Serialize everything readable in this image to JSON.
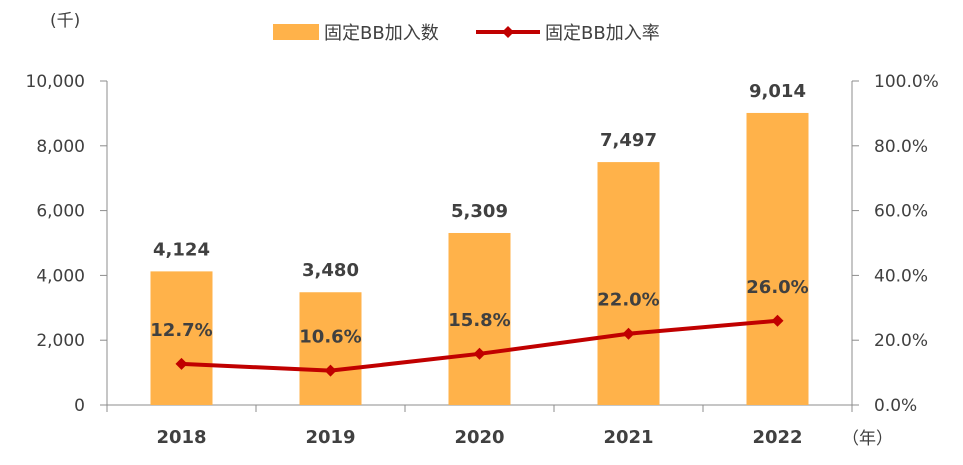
{
  "chart_data": {
    "type": "bar",
    "categories": [
      "2018",
      "2019",
      "2020",
      "2021",
      "2022"
    ],
    "series": [
      {
        "name": "固定BB加入数",
        "kind": "bar",
        "axis": "left",
        "color": "#FFB24A",
        "values": [
          4124,
          3480,
          5309,
          7497,
          9014
        ],
        "labels": [
          "4,124",
          "3,480",
          "5,309",
          "7,497",
          "9,014"
        ]
      },
      {
        "name": "固定BB加入率",
        "kind": "line",
        "axis": "right",
        "color": "#C00000",
        "values": [
          12.7,
          10.6,
          15.8,
          22.0,
          26.0
        ],
        "labels": [
          "12.7%",
          "10.6%",
          "15.8%",
          "22.0%",
          "26.0%"
        ]
      }
    ],
    "y_left": {
      "unit_label": "(千)",
      "ylim": [
        0,
        10000
      ],
      "ticks": [
        "0",
        "2,000",
        "4,000",
        "6,000",
        "8,000",
        "10,000"
      ]
    },
    "y_right": {
      "ylim": [
        0,
        100
      ],
      "ticks": [
        "0.0%",
        "20.0%",
        "40.0%",
        "60.0%",
        "80.0%",
        "100.0%"
      ]
    },
    "x_unit_label": "（年）",
    "legend_position": "top-center",
    "grid": false
  }
}
